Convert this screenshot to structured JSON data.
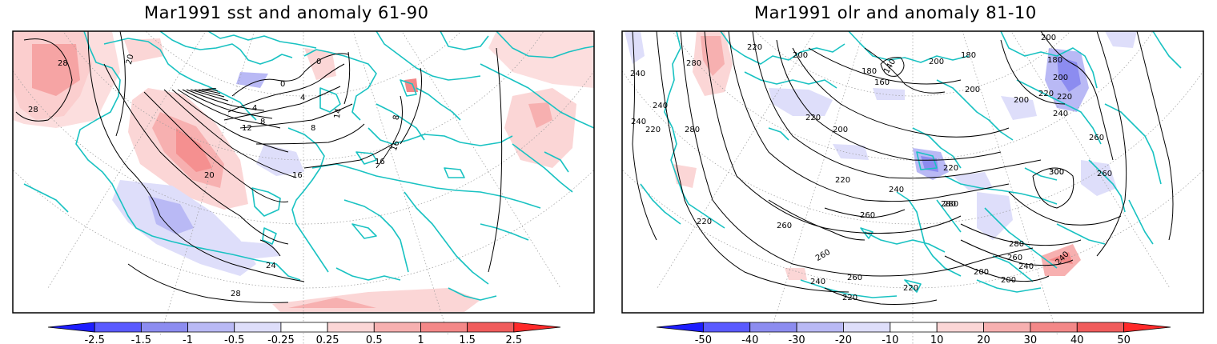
{
  "panels": [
    {
      "title": "Mar1991 sst and anomaly 61-90",
      "contour_labels": [
        "28",
        "28",
        "20",
        "0",
        "0",
        "4",
        "4",
        "8",
        "8",
        "8",
        "12",
        "16",
        "16",
        "16",
        "20",
        "24",
        "28",
        "14"
      ],
      "colorbar": {
        "ticks": [
          "-2.5",
          "-1.5",
          "-1",
          "-0.5",
          "-0.25",
          "0.25",
          "0.5",
          "1",
          "1.5",
          "2.5"
        ],
        "colors": [
          "#1e1eff",
          "#5a5aff",
          "#8c8cf0",
          "#b9b9f5",
          "#dedefa",
          "#ffffff",
          "#fbd6d6",
          "#f7b0b0",
          "#f48888",
          "#f05c5c",
          "#ff2a2a"
        ]
      }
    },
    {
      "title": "Mar1991 olr and anomaly 81-10",
      "contour_labels": [
        "220",
        "200",
        "180",
        "140",
        "160",
        "200",
        "180",
        "200",
        "180",
        "200",
        "220",
        "280",
        "240",
        "240",
        "220",
        "200",
        "200",
        "220",
        "220",
        "200",
        "240",
        "260",
        "280",
        "300",
        "260",
        "240",
        "260",
        "280",
        "220",
        "220",
        "260",
        "260",
        "260",
        "240",
        "260",
        "220",
        "220",
        "240",
        "240",
        "280",
        "280",
        "300",
        "240",
        "220",
        "200",
        "200"
      ],
      "colorbar": {
        "ticks": [
          "-50",
          "-40",
          "-30",
          "-20",
          "-10",
          "10",
          "20",
          "30",
          "40",
          "50"
        ],
        "colors": [
          "#1e1eff",
          "#5a5aff",
          "#8c8cf0",
          "#b9b9f5",
          "#dedefa",
          "#ffffff",
          "#fbd6d6",
          "#f7b0b0",
          "#f48888",
          "#f05c5c",
          "#ff2a2a"
        ]
      }
    }
  ],
  "colors": {
    "coastline": "#19c2c2",
    "contour": "#000000",
    "frame": "#000000",
    "graticule": "#9a9a9a"
  }
}
